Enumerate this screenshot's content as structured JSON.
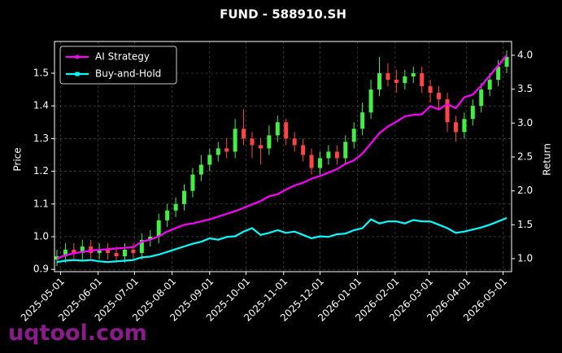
{
  "chart_data": {
    "type": "candlestick_returns",
    "title": "FUND - 588910.SH",
    "y_label": "Price",
    "y2_label": "Return",
    "watermark": "uqtool.com",
    "grid": true,
    "legend": "upper left",
    "up_color": "#44ee44",
    "down_color": "#ff4444",
    "xlim": [
      "2025-04-26",
      "2026-05-08"
    ],
    "xticks": [
      "2025-05-01",
      "2025-06-01",
      "2025-07-01",
      "2025-08-01",
      "2025-09-01",
      "2025-10-01",
      "2025-11-01",
      "2025-12-01",
      "2026-01-01",
      "2026-02-01",
      "2026-03-01",
      "2026-04-01",
      "2026-05-01"
    ],
    "ylim": [
      0.893,
      1.597
    ],
    "yticks": [
      0.9,
      {
        "value": 1.0,
        "label": "1.0"
      },
      1.1,
      1.2,
      1.3,
      1.4,
      1.5
    ],
    "y2lim": [
      0.808,
      4.204
    ],
    "y2ticks": [
      {
        "value": 1.0,
        "label": "1.0"
      },
      1.5,
      {
        "value": 2.0,
        "label": "2.0"
      },
      2.5,
      {
        "value": 3.0,
        "label": "3.0"
      },
      3.5,
      {
        "value": 4.0,
        "label": "4.0"
      }
    ],
    "x": [
      "2025-04-28",
      "2025-05-05",
      "2025-05-12",
      "2025-05-19",
      "2025-05-26",
      "2025-06-02",
      "2025-06-09",
      "2025-06-16",
      "2025-06-23",
      "2025-06-30",
      "2025-07-07",
      "2025-07-14",
      "2025-07-21",
      "2025-07-28",
      "2025-08-04",
      "2025-08-11",
      "2025-08-18",
      "2025-08-25",
      "2025-09-01",
      "2025-09-08",
      "2025-09-15",
      "2025-09-22",
      "2025-09-29",
      "2025-10-06",
      "2025-10-13",
      "2025-10-20",
      "2025-10-27",
      "2025-11-03",
      "2025-11-10",
      "2025-11-17",
      "2025-11-24",
      "2025-12-01",
      "2025-12-08",
      "2025-12-15",
      "2025-12-22",
      "2025-12-29",
      "2026-01-05",
      "2026-01-12",
      "2026-01-19",
      "2026-01-26",
      "2026-02-02",
      "2026-02-09",
      "2026-02-16",
      "2026-02-23",
      "2026-03-02",
      "2026-03-09",
      "2026-03-16",
      "2026-03-23",
      "2026-03-30",
      "2026-04-06",
      "2026-04-13",
      "2026-04-20",
      "2026-04-27",
      "2026-05-04"
    ],
    "open": [
      0.93,
      0.94,
      0.96,
      0.95,
      0.97,
      0.95,
      0.96,
      0.95,
      0.94,
      0.96,
      0.95,
      0.99,
      1.0,
      1.05,
      1.08,
      1.1,
      1.14,
      1.19,
      1.22,
      1.25,
      1.27,
      1.26,
      1.33,
      1.3,
      1.28,
      1.27,
      1.31,
      1.35,
      1.3,
      1.28,
      1.25,
      1.21,
      1.24,
      1.26,
      1.24,
      1.29,
      1.33,
      1.38,
      1.45,
      1.5,
      1.48,
      1.47,
      1.49,
      1.5,
      1.46,
      1.44,
      1.42,
      1.35,
      1.32,
      1.36,
      1.4,
      1.45,
      1.48,
      1.52
    ],
    "high": [
      0.96,
      0.98,
      0.98,
      0.99,
      0.99,
      0.98,
      0.98,
      0.97,
      0.98,
      0.98,
      1.01,
      1.02,
      1.07,
      1.1,
      1.12,
      1.16,
      1.21,
      1.25,
      1.27,
      1.29,
      1.3,
      1.36,
      1.39,
      1.32,
      1.3,
      1.34,
      1.37,
      1.36,
      1.32,
      1.3,
      1.27,
      1.26,
      1.28,
      1.28,
      1.31,
      1.35,
      1.41,
      1.48,
      1.55,
      1.53,
      1.51,
      1.51,
      1.52,
      1.52,
      1.48,
      1.46,
      1.44,
      1.37,
      1.38,
      1.42,
      1.47,
      1.5,
      1.54,
      1.57
    ],
    "low": [
      0.91,
      0.92,
      0.93,
      0.93,
      0.93,
      0.93,
      0.93,
      0.92,
      0.92,
      0.93,
      0.93,
      0.97,
      0.98,
      1.03,
      1.06,
      1.08,
      1.12,
      1.17,
      1.2,
      1.23,
      1.24,
      1.24,
      1.28,
      1.24,
      1.22,
      1.25,
      1.29,
      1.28,
      1.26,
      1.23,
      1.19,
      1.19,
      1.22,
      1.22,
      1.22,
      1.27,
      1.31,
      1.36,
      1.43,
      1.46,
      1.44,
      1.45,
      1.47,
      1.44,
      1.41,
      1.39,
      1.32,
      1.29,
      1.3,
      1.34,
      1.38,
      1.43,
      1.46,
      1.5
    ],
    "close": [
      0.94,
      0.96,
      0.95,
      0.97,
      0.95,
      0.96,
      0.95,
      0.94,
      0.96,
      0.95,
      0.99,
      1.0,
      1.05,
      1.08,
      1.1,
      1.14,
      1.19,
      1.22,
      1.25,
      1.27,
      1.26,
      1.33,
      1.3,
      1.28,
      1.27,
      1.31,
      1.35,
      1.3,
      1.28,
      1.25,
      1.21,
      1.24,
      1.26,
      1.24,
      1.29,
      1.33,
      1.38,
      1.45,
      1.5,
      1.48,
      1.47,
      1.49,
      1.5,
      1.46,
      1.44,
      1.42,
      1.35,
      1.32,
      1.36,
      1.4,
      1.45,
      1.48,
      1.52,
      1.55
    ],
    "series": [
      {
        "name": "AI Strategy",
        "color": "#ff00ff",
        "axis": "y2",
        "marker": "circle",
        "values": [
          1.0,
          1.05,
          1.08,
          1.1,
          1.12,
          1.13,
          1.14,
          1.15,
          1.16,
          1.17,
          1.25,
          1.28,
          1.33,
          1.4,
          1.45,
          1.5,
          1.52,
          1.55,
          1.58,
          1.62,
          1.66,
          1.7,
          1.75,
          1.8,
          1.85,
          1.92,
          1.95,
          2.02,
          2.08,
          2.12,
          2.18,
          2.22,
          2.27,
          2.32,
          2.4,
          2.45,
          2.55,
          2.7,
          2.85,
          2.95,
          3.02,
          3.1,
          3.12,
          3.13,
          3.25,
          3.2,
          3.28,
          3.22,
          3.38,
          3.42,
          3.55,
          3.7,
          3.85,
          4.0
        ]
      },
      {
        "name": "Buy-and-Hold",
        "color": "#00ffff",
        "axis": "y2",
        "marker": "square",
        "values": [
          0.95,
          0.97,
          0.98,
          0.97,
          0.98,
          0.96,
          0.95,
          0.96,
          0.97,
          0.98,
          1.02,
          1.03,
          1.06,
          1.1,
          1.14,
          1.18,
          1.22,
          1.25,
          1.3,
          1.28,
          1.32,
          1.33,
          1.4,
          1.45,
          1.35,
          1.38,
          1.42,
          1.38,
          1.4,
          1.35,
          1.3,
          1.33,
          1.32,
          1.36,
          1.37,
          1.42,
          1.45,
          1.58,
          1.52,
          1.55,
          1.55,
          1.52,
          1.57,
          1.55,
          1.55,
          1.5,
          1.45,
          1.38,
          1.4,
          1.43,
          1.46,
          1.5,
          1.55,
          1.6
        ]
      }
    ]
  }
}
